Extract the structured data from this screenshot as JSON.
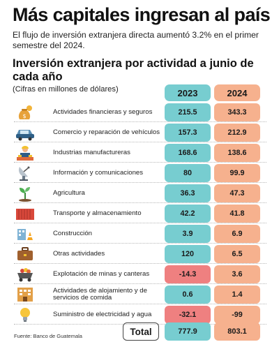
{
  "header": {
    "title": "Más capitales ingresan al país",
    "subtitle": "El flujo de inversión extranjera directa aumentó 3.2% en el primer semestre del 2024.",
    "section_title": "Inversión extranjera por actividad a junio de cada año",
    "units": "(Cifras en millones de dólares)"
  },
  "columns": {
    "y1": "2023",
    "y2": "2024"
  },
  "colors": {
    "col_2023": "#77cdd0",
    "col_2024": "#f6b18e",
    "negative": "#ef8080"
  },
  "rows": [
    {
      "label": "Actividades financieras y seguros",
      "v2023": "215.5",
      "v2024": "343.3",
      "icon": "money-bag-icon"
    },
    {
      "label": "Comercio y reparación de vehículos",
      "v2023": "157.3",
      "v2024": "212.9",
      "icon": "car-icon"
    },
    {
      "label": "Industrias manufactureras",
      "v2023": "168.6",
      "v2024": "138.6",
      "icon": "factory-worker-icon"
    },
    {
      "label": "Información y comunicaciones",
      "v2023": "80",
      "v2024": "99.9",
      "icon": "satellite-dish-icon"
    },
    {
      "label": "Agricultura",
      "v2023": "36.3",
      "v2024": "47.3",
      "icon": "plant-sprout-icon"
    },
    {
      "label": "Transporte y almacenamiento",
      "v2023": "42.2",
      "v2024": "41.8",
      "icon": "shipping-container-icon"
    },
    {
      "label": "Construcción",
      "v2023": "3.9",
      "v2024": "6.9",
      "icon": "construction-icon"
    },
    {
      "label": "Otras actividades",
      "v2023": "120",
      "v2024": "6.5",
      "icon": "briefcase-icon"
    },
    {
      "label": "Explotación de minas y canteras",
      "v2023": "-14.3",
      "v2024": "3.6",
      "icon": "mine-cart-icon"
    },
    {
      "label": "Actividades de alojamiento y de servicios de comida",
      "v2023": "0.6",
      "v2024": "1.4",
      "icon": "hotel-icon"
    },
    {
      "label": "Suministro de electricidad y agua",
      "v2023": "-32.1",
      "v2024": "-99",
      "icon": "light-bulb-icon"
    }
  ],
  "total": {
    "label": "Total",
    "v2023": "777.9",
    "v2024": "803.1"
  },
  "source": "Fuente: Banco de Guatemala",
  "chart_data": {
    "type": "table",
    "title": "Inversión extranjera por actividad a junio de cada año",
    "units": "(Cifras en millones de dólares)",
    "categories": [
      "Actividades financieras y seguros",
      "Comercio y reparación de vehículos",
      "Industrias manufactureras",
      "Información y comunicaciones",
      "Agricultura",
      "Transporte y almacenamiento",
      "Construcción",
      "Otras actividades",
      "Explotación de minas y canteras",
      "Actividades de alojamiento y de servicios de comida",
      "Suministro de electricidad y agua"
    ],
    "series": [
      {
        "name": "2023",
        "values": [
          215.5,
          157.3,
          168.6,
          80,
          36.3,
          42.2,
          3.9,
          120,
          -14.3,
          0.6,
          -32.1
        ]
      },
      {
        "name": "2024",
        "values": [
          343.3,
          212.9,
          138.6,
          99.9,
          47.3,
          41.8,
          6.9,
          6.5,
          3.6,
          1.4,
          -99
        ]
      }
    ],
    "totals": {
      "2023": 777.9,
      "2024": 803.1
    }
  }
}
